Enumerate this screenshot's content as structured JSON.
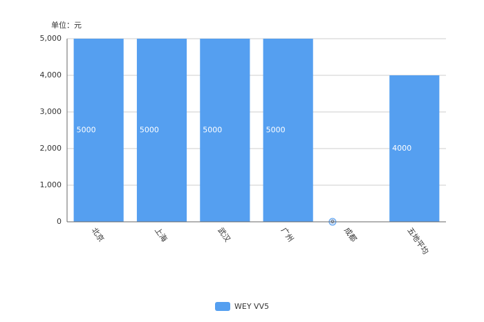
{
  "chart_data": {
    "type": "bar",
    "y_label": "单位：元",
    "categories": [
      "北京",
      "上海",
      "武汉",
      "广州",
      "成都",
      "五地平均"
    ],
    "series": [
      {
        "name": "WEY VV5",
        "color": "#559ff0",
        "values": [
          5000,
          5000,
          5000,
          5000,
          0,
          4000
        ]
      }
    ],
    "ylim": [
      0,
      5000
    ],
    "yticks": [
      0,
      {
        "value": 1000,
        "label": "1,000"
      },
      {
        "value": 2000,
        "label": "2,000"
      },
      {
        "value": 3000,
        "label": "3,000"
      },
      {
        "value": 4000,
        "label": "4,000"
      },
      {
        "value": 5000,
        "label": "5,000"
      }
    ],
    "grid": true,
    "legend": "bottom"
  }
}
